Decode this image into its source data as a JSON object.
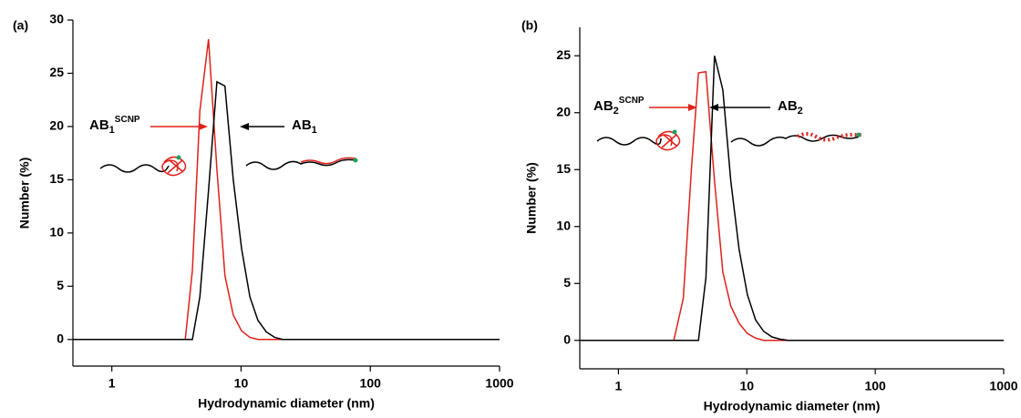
{
  "chart_data": [
    {
      "type": "line",
      "title": "(a)",
      "xlabel": "Hydrodynamic diameter (nm)",
      "ylabel": "Number (%)",
      "xscale": "log",
      "xlim": [
        0.5,
        1000
      ],
      "xticks": [
        1,
        10,
        100,
        1000
      ],
      "ylim": [
        -2.5,
        30
      ],
      "yticks": [
        0,
        5,
        10,
        15,
        20,
        25,
        30
      ],
      "annotations": [
        {
          "base": "AB",
          "sub": "1",
          "sup": "SCNP",
          "color": "#e0201b"
        },
        {
          "base": "AB",
          "sub": "1",
          "color": "#000000"
        }
      ],
      "series": [
        {
          "color": "#e0201b",
          "x": [
            0.5,
            3.7,
            4.2,
            4.8,
            5.6,
            6.5,
            7.5,
            8.7,
            10.1,
            11.7,
            13.5,
            1000
          ],
          "values": [
            0,
            0,
            6.5,
            21.5,
            28.2,
            16,
            6,
            2.3,
            0.8,
            0.2,
            0,
            0
          ]
        },
        {
          "color": "#000000",
          "x": [
            0.5,
            4.2,
            4.8,
            5.6,
            6.5,
            7.5,
            8.7,
            10.1,
            11.7,
            13.5,
            15.7,
            18.2,
            21,
            1000
          ],
          "values": [
            0,
            0,
            4,
            14,
            24.2,
            23.8,
            15,
            8.5,
            4,
            1.8,
            0.7,
            0.2,
            0,
            0
          ]
        }
      ]
    },
    {
      "type": "line",
      "title": "(b)",
      "xlabel": "Hydrodynamic diameter (nm)",
      "ylabel": "Number (%)",
      "xscale": "log",
      "xlim": [
        0.5,
        1000
      ],
      "xticks": [
        1,
        10,
        100,
        1000
      ],
      "ylim": [
        -2.5,
        27.5
      ],
      "yticks": [
        0,
        5,
        10,
        15,
        20,
        25
      ],
      "annotations": [
        {
          "base": "AB",
          "sub": "2",
          "sup": "SCNP",
          "color": "#e0201b"
        },
        {
          "base": "AB",
          "sub": "2",
          "color": "#000000"
        }
      ],
      "series": [
        {
          "color": "#e0201b",
          "x": [
            0.5,
            2.7,
            3.2,
            3.7,
            4.2,
            4.8,
            5.6,
            6.5,
            7.5,
            8.7,
            10.1,
            11.7,
            13.5,
            1000
          ],
          "values": [
            0,
            0,
            3.7,
            15,
            23.5,
            23.6,
            14,
            6,
            3,
            1.5,
            0.6,
            0.2,
            0,
            0
          ]
        },
        {
          "color": "#000000",
          "x": [
            0.5,
            4.2,
            4.8,
            5.6,
            6.5,
            7.5,
            8.7,
            10.1,
            11.7,
            13.5,
            15.7,
            18.2,
            21,
            1000
          ],
          "values": [
            0,
            0,
            5.5,
            25,
            22,
            14,
            8,
            4,
            1.8,
            0.8,
            0.3,
            0.1,
            0,
            0
          ]
        }
      ]
    }
  ]
}
